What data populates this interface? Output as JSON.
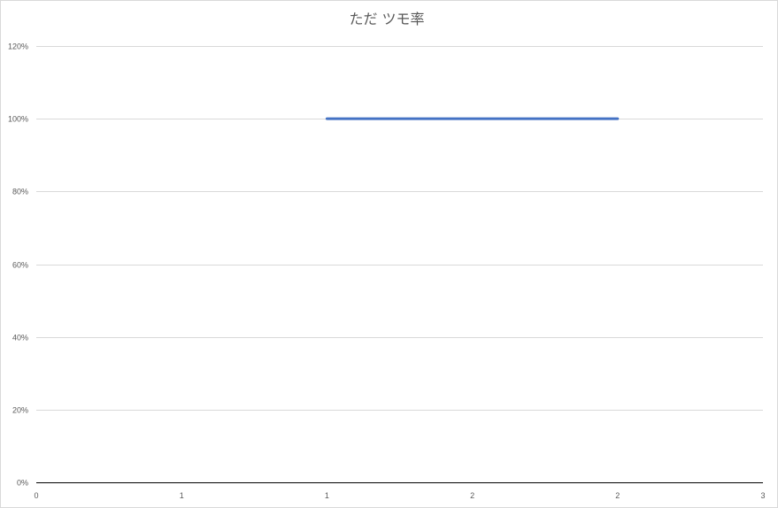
{
  "chart_data": {
    "type": "line",
    "title": "ただ ツモ率",
    "xlabel": "",
    "ylabel": "",
    "x_tick_labels": [
      "0",
      "1",
      "1",
      "2",
      "2",
      "3"
    ],
    "y_tick_labels": [
      "0%",
      "20%",
      "40%",
      "60%",
      "80%",
      "100%",
      "120%"
    ],
    "ylim": [
      0,
      1.2
    ],
    "y_ticks": [
      0,
      0.2,
      0.4,
      0.6,
      0.8,
      1.0,
      1.2
    ],
    "xlim": [
      0,
      2.5
    ],
    "x_ticks": [
      0,
      0.5,
      1.0,
      1.5,
      2.0,
      2.5
    ],
    "grid": true,
    "legend": "none",
    "series": [
      {
        "x": [
          1.0,
          2.0
        ],
        "y": [
          1.0,
          1.0
        ],
        "color": "#4472c4"
      }
    ]
  }
}
